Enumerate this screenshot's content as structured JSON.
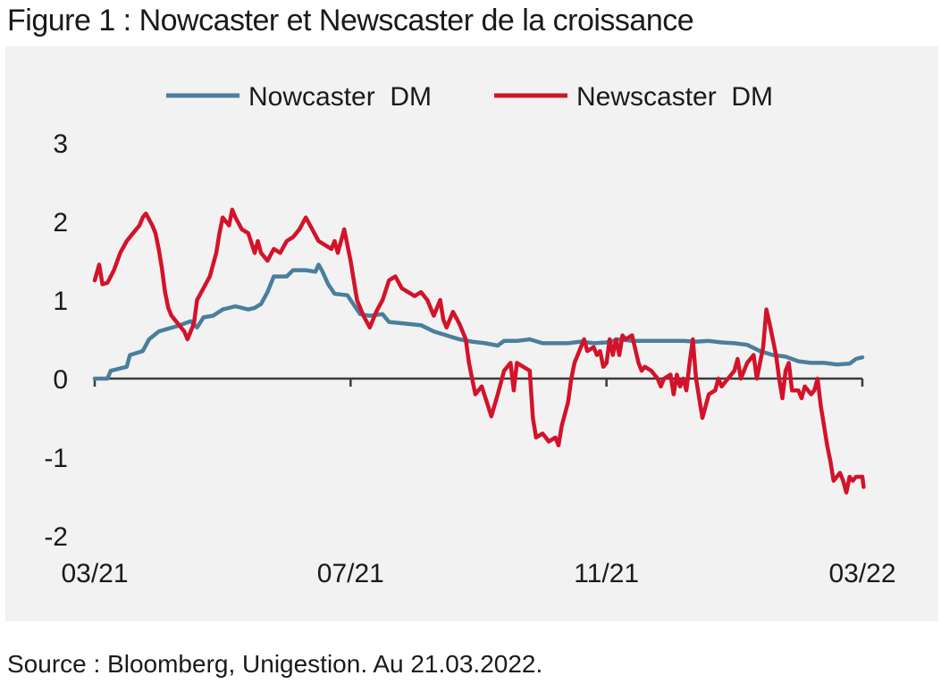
{
  "figure_title": "Figure 1 : Nowcaster et Newscaster de la croissance",
  "source": "Source : Bloomberg, Unigestion. Au 21.03.2022.",
  "colors": {
    "nowcaster": "#4a7f9c",
    "newscaster": "#d3132a",
    "axis": "#3a3a3a",
    "background": "#f2f2f2"
  },
  "chart_data": {
    "type": "line",
    "title": "",
    "xlabel": "",
    "ylabel": "",
    "ylim": [
      -2,
      3
    ],
    "yticks": [
      "3",
      "2",
      "1",
      "0",
      "-1",
      "-2"
    ],
    "xticks": [
      {
        "x": 0,
        "label": "03/21"
      },
      {
        "x": 4,
        "label": "07/21"
      },
      {
        "x": 8,
        "label": "11/21"
      },
      {
        "x": 12,
        "label": "03/22"
      }
    ],
    "xlim": [
      0,
      12
    ],
    "grid": false,
    "legend_position": "top",
    "series": [
      {
        "name": "Nowcaster  DM",
        "color": "#4a7f9c",
        "points": [
          [
            0.0,
            0.0
          ],
          [
            0.2,
            0.0
          ],
          [
            0.25,
            0.1
          ],
          [
            0.5,
            0.15
          ],
          [
            0.55,
            0.3
          ],
          [
            0.75,
            0.35
          ],
          [
            0.85,
            0.5
          ],
          [
            1.0,
            0.6
          ],
          [
            1.3,
            0.67
          ],
          [
            1.5,
            0.73
          ],
          [
            1.6,
            0.65
          ],
          [
            1.7,
            0.78
          ],
          [
            1.85,
            0.8
          ],
          [
            2.0,
            0.88
          ],
          [
            2.2,
            0.92
          ],
          [
            2.4,
            0.88
          ],
          [
            2.5,
            0.9
          ],
          [
            2.6,
            0.95
          ],
          [
            2.7,
            1.1
          ],
          [
            2.8,
            1.3
          ],
          [
            3.0,
            1.3
          ],
          [
            3.1,
            1.38
          ],
          [
            3.3,
            1.38
          ],
          [
            3.45,
            1.36
          ],
          [
            3.5,
            1.45
          ],
          [
            3.55,
            1.38
          ],
          [
            3.65,
            1.2
          ],
          [
            3.75,
            1.08
          ],
          [
            3.95,
            1.06
          ],
          [
            4.0,
            1.0
          ],
          [
            4.15,
            0.82
          ],
          [
            4.3,
            0.8
          ],
          [
            4.5,
            0.82
          ],
          [
            4.6,
            0.72
          ],
          [
            4.85,
            0.7
          ],
          [
            5.1,
            0.68
          ],
          [
            5.3,
            0.6
          ],
          [
            5.5,
            0.55
          ],
          [
            5.7,
            0.5
          ],
          [
            5.9,
            0.47
          ],
          [
            6.1,
            0.45
          ],
          [
            6.3,
            0.42
          ],
          [
            6.4,
            0.48
          ],
          [
            6.6,
            0.48
          ],
          [
            6.8,
            0.5
          ],
          [
            7.0,
            0.45
          ],
          [
            7.2,
            0.45
          ],
          [
            7.4,
            0.45
          ],
          [
            7.6,
            0.47
          ],
          [
            7.8,
            0.45
          ],
          [
            8.0,
            0.46
          ],
          [
            8.2,
            0.5
          ],
          [
            8.4,
            0.48
          ],
          [
            8.6,
            0.48
          ],
          [
            8.8,
            0.48
          ],
          [
            9.0,
            0.48
          ],
          [
            9.2,
            0.48
          ],
          [
            9.4,
            0.47
          ],
          [
            9.6,
            0.48
          ],
          [
            9.8,
            0.46
          ],
          [
            10.0,
            0.45
          ],
          [
            10.2,
            0.43
          ],
          [
            10.4,
            0.35
          ],
          [
            10.6,
            0.3
          ],
          [
            10.8,
            0.28
          ],
          [
            11.0,
            0.22
          ],
          [
            11.2,
            0.2
          ],
          [
            11.4,
            0.2
          ],
          [
            11.6,
            0.18
          ],
          [
            11.8,
            0.19
          ],
          [
            11.9,
            0.25
          ],
          [
            12.0,
            0.27
          ]
        ]
      },
      {
        "name": "Newscaster  DM",
        "color": "#d3132a",
        "points": [
          [
            0.0,
            1.25
          ],
          [
            0.07,
            1.45
          ],
          [
            0.12,
            1.2
          ],
          [
            0.2,
            1.22
          ],
          [
            0.3,
            1.38
          ],
          [
            0.4,
            1.6
          ],
          [
            0.5,
            1.75
          ],
          [
            0.6,
            1.85
          ],
          [
            0.7,
            1.95
          ],
          [
            0.75,
            2.05
          ],
          [
            0.8,
            2.1
          ],
          [
            0.9,
            1.95
          ],
          [
            0.95,
            1.85
          ],
          [
            1.0,
            1.65
          ],
          [
            1.05,
            1.4
          ],
          [
            1.1,
            1.1
          ],
          [
            1.15,
            0.9
          ],
          [
            1.2,
            0.8
          ],
          [
            1.3,
            0.7
          ],
          [
            1.4,
            0.6
          ],
          [
            1.45,
            0.5
          ],
          [
            1.55,
            0.7
          ],
          [
            1.6,
            1.0
          ],
          [
            1.7,
            1.15
          ],
          [
            1.8,
            1.3
          ],
          [
            1.9,
            1.6
          ],
          [
            1.95,
            1.85
          ],
          [
            2.0,
            2.05
          ],
          [
            2.1,
            1.95
          ],
          [
            2.15,
            2.15
          ],
          [
            2.2,
            2.05
          ],
          [
            2.3,
            1.9
          ],
          [
            2.4,
            1.85
          ],
          [
            2.5,
            1.6
          ],
          [
            2.55,
            1.75
          ],
          [
            2.6,
            1.6
          ],
          [
            2.7,
            1.5
          ],
          [
            2.8,
            1.65
          ],
          [
            2.9,
            1.6
          ],
          [
            3.0,
            1.75
          ],
          [
            3.1,
            1.8
          ],
          [
            3.2,
            1.9
          ],
          [
            3.3,
            2.05
          ],
          [
            3.4,
            1.9
          ],
          [
            3.5,
            1.75
          ],
          [
            3.6,
            1.7
          ],
          [
            3.7,
            1.65
          ],
          [
            3.75,
            1.75
          ],
          [
            3.8,
            1.6
          ],
          [
            3.9,
            1.9
          ],
          [
            4.0,
            1.5
          ],
          [
            4.1,
            1.0
          ],
          [
            4.2,
            0.8
          ],
          [
            4.3,
            0.65
          ],
          [
            4.4,
            0.85
          ],
          [
            4.5,
            1.0
          ],
          [
            4.6,
            1.25
          ],
          [
            4.7,
            1.3
          ],
          [
            4.8,
            1.15
          ],
          [
            4.9,
            1.1
          ],
          [
            5.0,
            1.05
          ],
          [
            5.1,
            1.1
          ],
          [
            5.2,
            1.0
          ],
          [
            5.3,
            0.8
          ],
          [
            5.4,
            1.0
          ],
          [
            5.45,
            0.75
          ],
          [
            5.5,
            0.65
          ],
          [
            5.6,
            0.85
          ],
          [
            5.7,
            0.7
          ],
          [
            5.8,
            0.5
          ],
          [
            5.85,
            0.2
          ],
          [
            5.9,
            0.0
          ],
          [
            5.95,
            -0.2
          ],
          [
            6.05,
            -0.1
          ],
          [
            6.15,
            -0.35
          ],
          [
            6.2,
            -0.48
          ],
          [
            6.3,
            -0.2
          ],
          [
            6.4,
            0.1
          ],
          [
            6.5,
            0.2
          ],
          [
            6.55,
            -0.15
          ],
          [
            6.6,
            0.2
          ],
          [
            6.7,
            0.15
          ],
          [
            6.8,
            0.1
          ],
          [
            6.85,
            -0.5
          ],
          [
            6.9,
            -0.75
          ],
          [
            7.0,
            -0.7
          ],
          [
            7.1,
            -0.8
          ],
          [
            7.2,
            -0.75
          ],
          [
            7.25,
            -0.85
          ],
          [
            7.3,
            -0.6
          ],
          [
            7.4,
            -0.3
          ],
          [
            7.45,
            0.0
          ],
          [
            7.5,
            0.2
          ],
          [
            7.6,
            0.4
          ],
          [
            7.65,
            0.5
          ],
          [
            7.7,
            0.35
          ],
          [
            7.8,
            0.4
          ],
          [
            7.85,
            0.3
          ],
          [
            7.9,
            0.35
          ],
          [
            7.95,
            0.15
          ],
          [
            8.0,
            0.2
          ],
          [
            8.05,
            0.5
          ],
          [
            8.1,
            0.3
          ],
          [
            8.15,
            0.5
          ],
          [
            8.2,
            0.3
          ],
          [
            8.25,
            0.55
          ],
          [
            8.3,
            0.5
          ],
          [
            8.4,
            0.55
          ],
          [
            8.5,
            0.2
          ],
          [
            8.55,
            0.1
          ],
          [
            8.6,
            0.15
          ],
          [
            8.7,
            0.1
          ],
          [
            8.8,
            0.0
          ],
          [
            8.85,
            -0.1
          ],
          [
            8.9,
            0.0
          ],
          [
            9.0,
            0.05
          ],
          [
            9.05,
            -0.2
          ],
          [
            9.1,
            0.05
          ],
          [
            9.15,
            -0.1
          ],
          [
            9.2,
            0.0
          ],
          [
            9.25,
            -0.15
          ],
          [
            9.3,
            0.2
          ],
          [
            9.35,
            0.5
          ],
          [
            9.4,
            0.0
          ],
          [
            9.5,
            -0.5
          ],
          [
            9.6,
            -0.2
          ],
          [
            9.7,
            -0.15
          ],
          [
            9.75,
            0.0
          ],
          [
            9.8,
            -0.1
          ],
          [
            9.9,
            0.0
          ],
          [
            10.0,
            0.1
          ],
          [
            10.05,
            0.25
          ],
          [
            10.1,
            0.0
          ],
          [
            10.15,
            0.1
          ],
          [
            10.2,
            0.2
          ],
          [
            10.3,
            0.3
          ],
          [
            10.35,
            0.0
          ],
          [
            10.45,
            0.4
          ],
          [
            10.5,
            0.88
          ],
          [
            10.55,
            0.7
          ],
          [
            10.6,
            0.5
          ],
          [
            10.65,
            0.3
          ],
          [
            10.7,
            0.0
          ],
          [
            10.75,
            -0.25
          ],
          [
            10.8,
            0.1
          ],
          [
            10.85,
            0.2
          ],
          [
            10.9,
            -0.15
          ],
          [
            11.0,
            -0.15
          ],
          [
            11.05,
            -0.25
          ],
          [
            11.1,
            -0.1
          ],
          [
            11.2,
            -0.2
          ],
          [
            11.25,
            -0.15
          ],
          [
            11.3,
            0.0
          ],
          [
            11.35,
            -0.35
          ],
          [
            11.4,
            -0.6
          ],
          [
            11.45,
            -0.85
          ],
          [
            11.5,
            -1.05
          ],
          [
            11.55,
            -1.3
          ],
          [
            11.6,
            -1.25
          ],
          [
            11.65,
            -1.2
          ],
          [
            11.7,
            -1.3
          ],
          [
            11.75,
            -1.45
          ],
          [
            11.8,
            -1.25
          ],
          [
            11.85,
            -1.3
          ],
          [
            11.9,
            -1.25
          ],
          [
            12.0,
            -1.25
          ],
          [
            12.02,
            -1.38
          ]
        ]
      }
    ]
  }
}
